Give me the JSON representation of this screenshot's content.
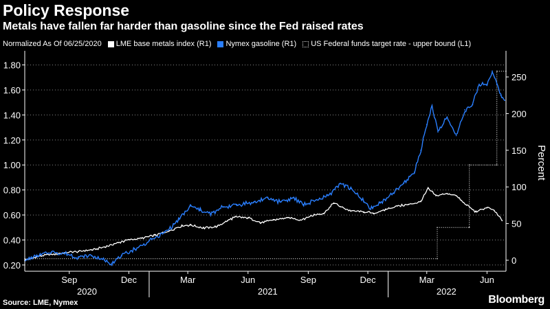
{
  "chart_data": {
    "type": "line",
    "title": "Policy Response",
    "subtitle": "Metals have fallen far harder than gasoline since the Fed raised rates",
    "legend_note": "Normalized As Of 06/25/2020",
    "source": "Source: LME, Nymex",
    "brand": "Bloomberg",
    "right_axis_label": "Percent",
    "left_axis": {
      "ticks": [
        0.2,
        0.4,
        0.6,
        0.8,
        1.0,
        1.2,
        1.4,
        1.6,
        1.8
      ],
      "range": [
        0.15,
        1.88
      ]
    },
    "right_axis": {
      "ticks": [
        0,
        50,
        100,
        150,
        200,
        250
      ],
      "range": [
        -15,
        280
      ]
    },
    "x_range": [
      "2020-06-25",
      "2022-06-30"
    ],
    "x_month_ticks": [
      {
        "date": "2020-09-01",
        "label": "Sep"
      },
      {
        "date": "2020-12-01",
        "label": "Dec"
      },
      {
        "date": "2021-03-01",
        "label": "Mar"
      },
      {
        "date": "2021-06-01",
        "label": "Jun"
      },
      {
        "date": "2021-09-01",
        "label": "Sep"
      },
      {
        "date": "2021-12-01",
        "label": "Dec"
      },
      {
        "date": "2022-03-01",
        "label": "Mar"
      },
      {
        "date": "2022-06-01",
        "label": "Jun"
      }
    ],
    "x_year_labels": [
      {
        "year": "2020",
        "mid": "2020-09-28"
      },
      {
        "year": "2021",
        "mid": "2021-07-01"
      },
      {
        "year": "2022",
        "mid": "2022-03-31"
      }
    ],
    "x_year_boundaries": [
      "2021-01-01",
      "2022-01-01"
    ],
    "grid": "dotted horizontal",
    "series": [
      {
        "name": "LME base metals index (R1)",
        "color": "#ffffff",
        "axis": "right",
        "points": [
          [
            "2020-06-25",
            0
          ],
          [
            "2020-07-15",
            5
          ],
          [
            "2020-08-05",
            8
          ],
          [
            "2020-08-25",
            10
          ],
          [
            "2020-09-15",
            12
          ],
          [
            "2020-10-05",
            14
          ],
          [
            "2020-10-25",
            18
          ],
          [
            "2020-11-15",
            24
          ],
          [
            "2020-12-01",
            28
          ],
          [
            "2020-12-20",
            30
          ],
          [
            "2021-01-10",
            34
          ],
          [
            "2021-02-01",
            40
          ],
          [
            "2021-02-20",
            47
          ],
          [
            "2021-03-05",
            48
          ],
          [
            "2021-03-25",
            44
          ],
          [
            "2021-04-15",
            46
          ],
          [
            "2021-05-01",
            54
          ],
          [
            "2021-05-12",
            59
          ],
          [
            "2021-06-01",
            58
          ],
          [
            "2021-06-20",
            51
          ],
          [
            "2021-07-10",
            55
          ],
          [
            "2021-08-01",
            58
          ],
          [
            "2021-08-20",
            55
          ],
          [
            "2021-09-10",
            62
          ],
          [
            "2021-09-25",
            64
          ],
          [
            "2021-10-10",
            78
          ],
          [
            "2021-10-20",
            73
          ],
          [
            "2021-11-05",
            67
          ],
          [
            "2021-11-25",
            66
          ],
          [
            "2021-12-10",
            64
          ],
          [
            "2021-12-28",
            69
          ],
          [
            "2022-01-15",
            74
          ],
          [
            "2022-02-01",
            76
          ],
          [
            "2022-02-20",
            80
          ],
          [
            "2022-03-03",
            98
          ],
          [
            "2022-03-15",
            88
          ],
          [
            "2022-04-01",
            91
          ],
          [
            "2022-04-15",
            88
          ],
          [
            "2022-05-01",
            75
          ],
          [
            "2022-05-15",
            66
          ],
          [
            "2022-06-01",
            72
          ],
          [
            "2022-06-12",
            68
          ],
          [
            "2022-06-24",
            54
          ]
        ]
      },
      {
        "name": "Nymex gasoline (R1)",
        "color": "#2a7fff",
        "axis": "right",
        "points": [
          [
            "2020-06-25",
            0
          ],
          [
            "2020-07-15",
            6
          ],
          [
            "2020-08-05",
            11
          ],
          [
            "2020-08-25",
            9
          ],
          [
            "2020-09-15",
            4
          ],
          [
            "2020-10-05",
            6
          ],
          [
            "2020-10-25",
            0
          ],
          [
            "2020-11-05",
            -4
          ],
          [
            "2020-11-20",
            6
          ],
          [
            "2020-12-10",
            15
          ],
          [
            "2021-01-05",
            28
          ],
          [
            "2021-01-25",
            38
          ],
          [
            "2021-02-15",
            55
          ],
          [
            "2021-03-05",
            74
          ],
          [
            "2021-03-20",
            68
          ],
          [
            "2021-04-05",
            63
          ],
          [
            "2021-04-25",
            73
          ],
          [
            "2021-05-15",
            76
          ],
          [
            "2021-06-10",
            79
          ],
          [
            "2021-07-01",
            85
          ],
          [
            "2021-07-20",
            80
          ],
          [
            "2021-08-10",
            85
          ],
          [
            "2021-08-25",
            76
          ],
          [
            "2021-09-15",
            82
          ],
          [
            "2021-10-01",
            88
          ],
          [
            "2021-10-20",
            105
          ],
          [
            "2021-11-05",
            98
          ],
          [
            "2021-11-25",
            80
          ],
          [
            "2021-12-05",
            70
          ],
          [
            "2021-12-20",
            78
          ],
          [
            "2022-01-10",
            92
          ],
          [
            "2022-01-25",
            105
          ],
          [
            "2022-02-10",
            120
          ],
          [
            "2022-02-20",
            150
          ],
          [
            "2022-03-01",
            185
          ],
          [
            "2022-03-09",
            210
          ],
          [
            "2022-03-18",
            175
          ],
          [
            "2022-04-01",
            195
          ],
          [
            "2022-04-15",
            170
          ],
          [
            "2022-04-28",
            205
          ],
          [
            "2022-05-10",
            212
          ],
          [
            "2022-05-20",
            240
          ],
          [
            "2022-06-01",
            240
          ],
          [
            "2022-06-09",
            258
          ],
          [
            "2022-06-16",
            240
          ],
          [
            "2022-06-22",
            225
          ],
          [
            "2022-06-28",
            218
          ]
        ]
      },
      {
        "name": "US Federal funds target rate - upper bound (L1)",
        "color": "#d9d9d9",
        "axis": "left",
        "style": "dotted step",
        "points": [
          [
            "2020-06-25",
            0.25
          ],
          [
            "2022-03-17",
            0.25
          ],
          [
            "2022-03-17",
            0.5
          ],
          [
            "2022-05-05",
            0.5
          ],
          [
            "2022-05-05",
            1.0
          ],
          [
            "2022-06-16",
            1.0
          ],
          [
            "2022-06-16",
            1.75
          ],
          [
            "2022-06-30",
            1.75
          ]
        ]
      }
    ]
  }
}
